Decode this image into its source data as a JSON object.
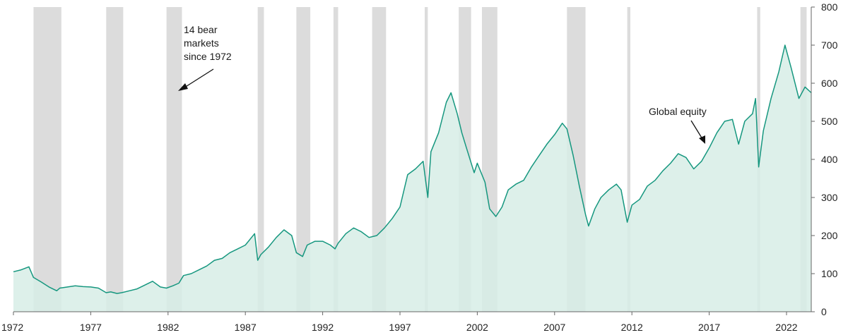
{
  "chart_data": {
    "type": "area",
    "title": "",
    "xlabel": "",
    "ylabel": "",
    "x_ticks": [
      "1972",
      "1977",
      "1982",
      "1987",
      "1992",
      "1997",
      "2002",
      "2007",
      "2012",
      "2017",
      "2022"
    ],
    "y_ticks": [
      "0",
      "100",
      "200",
      "300",
      "400",
      "500",
      "600",
      "700",
      "800"
    ],
    "xlim": [
      1972,
      2023.6
    ],
    "ylim": [
      0,
      800
    ],
    "y_axis_side": "right",
    "grid": false,
    "series": [
      {
        "x": [
          1972.0,
          1972.5,
          1973.0,
          1973.3,
          1973.8,
          1974.3,
          1974.8,
          1975.0,
          1975.5,
          1976.0,
          1976.5,
          1977.0,
          1977.5,
          1978.0,
          1978.3,
          1978.7,
          1979.0,
          1979.5,
          1980.0,
          1980.5,
          1981.0,
          1981.5,
          1981.9,
          1982.3,
          1982.7,
          1983.0,
          1983.5,
          1984.0,
          1984.5,
          1985.0,
          1985.5,
          1986.0,
          1986.5,
          1987.0,
          1987.6,
          1987.8,
          1988.0,
          1988.5,
          1989.0,
          1989.5,
          1990.0,
          1990.3,
          1990.7,
          1991.0,
          1991.5,
          1992.0,
          1992.5,
          1992.8,
          1993.0,
          1993.5,
          1994.0,
          1994.5,
          1995.0,
          1995.5,
          1996.0,
          1996.5,
          1997.0,
          1997.5,
          1998.0,
          1998.5,
          1998.8,
          1999.0,
          1999.5,
          2000.0,
          2000.3,
          2000.7,
          2001.0,
          2001.3,
          2001.8,
          2002.0,
          2002.5,
          2002.8,
          2003.2,
          2003.6,
          2004.0,
          2004.5,
          2005.0,
          2005.5,
          2006.0,
          2006.5,
          2007.0,
          2007.5,
          2007.8,
          2008.2,
          2008.6,
          2009.0,
          2009.2,
          2009.6,
          2010.0,
          2010.5,
          2011.0,
          2011.3,
          2011.7,
          2012.0,
          2012.5,
          2013.0,
          2013.5,
          2014.0,
          2014.5,
          2015.0,
          2015.5,
          2016.0,
          2016.5,
          2017.0,
          2017.5,
          2018.0,
          2018.5,
          2018.9,
          2019.3,
          2019.8,
          2020.0,
          2020.2,
          2020.5,
          2021.0,
          2021.5,
          2021.9,
          2022.3,
          2022.8,
          2023.2,
          2023.6
        ],
        "values": [
          105,
          110,
          118,
          90,
          78,
          65,
          55,
          62,
          65,
          68,
          66,
          65,
          62,
          50,
          52,
          48,
          50,
          55,
          60,
          70,
          80,
          65,
          62,
          68,
          75,
          95,
          100,
          110,
          120,
          135,
          140,
          155,
          165,
          175,
          205,
          135,
          150,
          170,
          195,
          215,
          200,
          155,
          145,
          175,
          185,
          185,
          175,
          165,
          180,
          205,
          220,
          210,
          195,
          200,
          220,
          245,
          275,
          360,
          375,
          395,
          300,
          420,
          470,
          550,
          575,
          520,
          470,
          430,
          365,
          390,
          340,
          270,
          250,
          275,
          320,
          335,
          345,
          380,
          410,
          440,
          465,
          495,
          480,
          410,
          330,
          255,
          225,
          270,
          300,
          320,
          335,
          320,
          235,
          280,
          295,
          330,
          345,
          370,
          390,
          415,
          405,
          375,
          395,
          430,
          470,
          500,
          505,
          440,
          500,
          520,
          560,
          380,
          475,
          560,
          630,
          700,
          640,
          560,
          590,
          575
        ]
      }
    ],
    "bear_markets": [
      [
        1973.3,
        1975.1
      ],
      [
        1978.0,
        1979.1
      ],
      [
        1981.9,
        1982.9
      ],
      [
        1987.8,
        1988.2
      ],
      [
        1990.3,
        1991.2
      ],
      [
        1992.7,
        1993.0
      ],
      [
        1995.2,
        1996.1
      ],
      [
        1998.6,
        1998.8
      ],
      [
        2000.8,
        2001.6
      ],
      [
        2002.3,
        2003.3
      ],
      [
        2007.8,
        2009.0
      ],
      [
        2011.7,
        2011.9
      ],
      [
        2020.1,
        2020.3
      ],
      [
        2022.9,
        2023.3
      ]
    ],
    "colors": {
      "line": "#16977f",
      "area": "#d7ede6",
      "bear_band": "#dcdcdc",
      "axis": "#666666"
    },
    "annotations": [
      {
        "lines": [
          "14 bear",
          "markets",
          "since 1972"
        ],
        "arrow": "down-left"
      },
      {
        "lines": [
          "Global equity"
        ],
        "arrow": "down-right"
      }
    ]
  }
}
